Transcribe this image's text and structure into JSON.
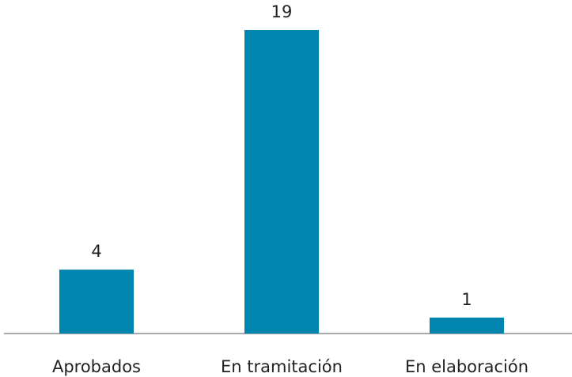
{
  "chart_data": {
    "type": "bar",
    "categories": [
      "Aprobados",
      "En tramitación",
      "En elaboración"
    ],
    "values": [
      4,
      19,
      1
    ],
    "color": "#0085ae"
  }
}
